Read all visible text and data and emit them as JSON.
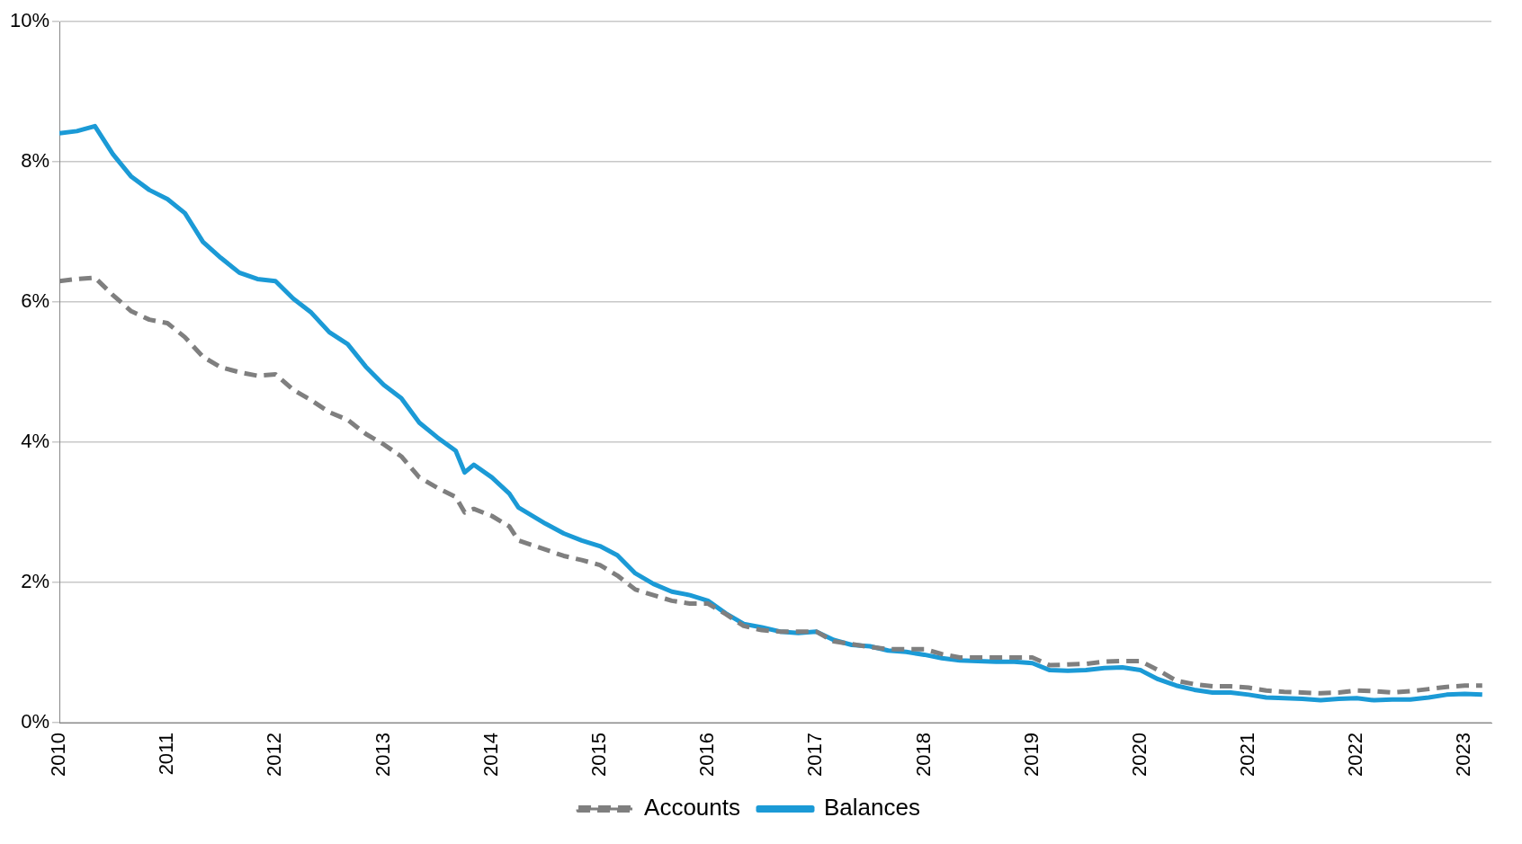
{
  "chart_data": {
    "type": "line",
    "x": [
      "2010-01",
      "2010-03",
      "2010-05",
      "2010-07",
      "2010-09",
      "2010-11",
      "2011-01",
      "2011-03",
      "2011-05",
      "2011-07",
      "2011-09",
      "2011-11",
      "2012-01",
      "2012-03",
      "2012-05",
      "2012-07",
      "2012-09",
      "2012-11",
      "2013-01",
      "2013-03",
      "2013-05",
      "2013-07",
      "2013-09",
      "2013-10",
      "2013-11",
      "2014-01",
      "2014-03",
      "2014-04",
      "2014-07",
      "2014-09",
      "2014-11",
      "2015-01",
      "2015-03",
      "2015-05",
      "2015-07",
      "2015-09",
      "2015-11",
      "2016-01",
      "2016-03",
      "2016-05",
      "2016-07",
      "2016-09",
      "2016-11",
      "2017-01",
      "2017-03",
      "2017-05",
      "2017-07",
      "2017-09",
      "2017-11",
      "2018-01",
      "2018-03",
      "2018-05",
      "2018-07",
      "2018-09",
      "2018-11",
      "2019-01",
      "2019-03",
      "2019-05",
      "2019-07",
      "2019-09",
      "2019-11",
      "2020-01",
      "2020-03",
      "2020-05",
      "2020-07",
      "2020-09",
      "2020-11",
      "2021-01",
      "2021-03",
      "2021-05",
      "2021-07",
      "2021-09",
      "2021-11",
      "2022-01",
      "2022-03",
      "2022-05",
      "2022-07",
      "2022-09",
      "2022-11",
      "2023-01",
      "2023-03"
    ],
    "series": [
      {
        "name": "Accounts",
        "color": "#7f7f7f",
        "line_style": "dashed",
        "values": [
          6.3,
          6.33,
          6.35,
          6.1,
          5.87,
          5.75,
          5.7,
          5.5,
          5.22,
          5.07,
          5.0,
          4.95,
          4.97,
          4.75,
          4.6,
          4.43,
          4.32,
          4.12,
          3.97,
          3.8,
          3.5,
          3.35,
          3.22,
          3.0,
          3.05,
          2.95,
          2.8,
          2.6,
          2.47,
          2.38,
          2.32,
          2.25,
          2.1,
          1.9,
          1.82,
          1.74,
          1.7,
          1.7,
          1.55,
          1.38,
          1.32,
          1.3,
          1.3,
          1.3,
          1.16,
          1.12,
          1.08,
          1.05,
          1.05,
          1.05,
          0.98,
          0.93,
          0.93,
          0.93,
          0.93,
          0.93,
          0.82,
          0.83,
          0.84,
          0.87,
          0.88,
          0.88,
          0.75,
          0.6,
          0.55,
          0.52,
          0.52,
          0.5,
          0.46,
          0.44,
          0.43,
          0.42,
          0.43,
          0.46,
          0.45,
          0.43,
          0.45,
          0.48,
          0.51,
          0.53,
          0.53
        ]
      },
      {
        "name": "Balances",
        "color": "#1b9ad6",
        "line_style": "solid",
        "values": [
          8.41,
          8.44,
          8.51,
          8.11,
          7.79,
          7.6,
          7.47,
          7.27,
          6.86,
          6.63,
          6.42,
          6.33,
          6.3,
          6.05,
          5.85,
          5.57,
          5.4,
          5.08,
          4.82,
          4.63,
          4.28,
          4.07,
          3.88,
          3.57,
          3.68,
          3.5,
          3.27,
          3.07,
          2.84,
          2.7,
          2.6,
          2.52,
          2.39,
          2.13,
          1.98,
          1.87,
          1.82,
          1.74,
          1.56,
          1.41,
          1.36,
          1.3,
          1.28,
          1.3,
          1.18,
          1.11,
          1.09,
          1.03,
          1.01,
          0.97,
          0.92,
          0.89,
          0.88,
          0.87,
          0.87,
          0.85,
          0.75,
          0.74,
          0.75,
          0.78,
          0.79,
          0.75,
          0.62,
          0.53,
          0.47,
          0.43,
          0.43,
          0.4,
          0.36,
          0.35,
          0.34,
          0.32,
          0.34,
          0.35,
          0.32,
          0.33,
          0.33,
          0.36,
          0.4,
          0.41,
          0.4
        ]
      }
    ],
    "xlim": [
      "2010",
      "2023-04"
    ],
    "xticks": [
      "2010",
      "2011",
      "2012",
      "2013",
      "2014",
      "2015",
      "2016",
      "2017",
      "2018",
      "2019",
      "2020",
      "2021",
      "2022",
      "2023"
    ],
    "ylim": [
      0,
      10
    ],
    "yticks": [
      {
        "value": 0,
        "label": "0%"
      },
      {
        "value": 2,
        "label": "2%"
      },
      {
        "value": 4,
        "label": "4%"
      },
      {
        "value": 6,
        "label": "6%"
      },
      {
        "value": 8,
        "label": "8%"
      },
      {
        "value": 10,
        "label": "10%"
      }
    ],
    "grid": "y",
    "legend": "bottom",
    "marker": "none"
  }
}
